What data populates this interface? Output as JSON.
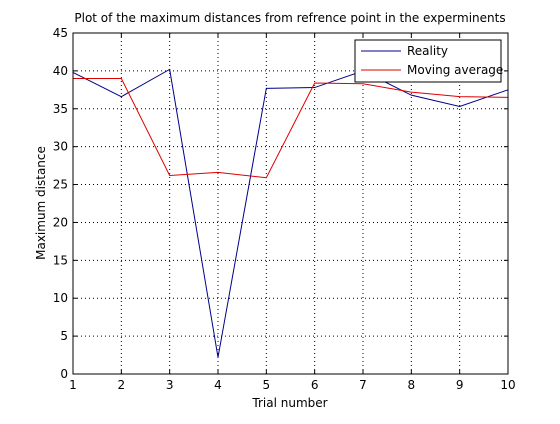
{
  "chart_data": {
    "type": "line",
    "title": "Plot of the maximum distances from refrence point in the experminents",
    "xlabel": "Trial number",
    "ylabel": "Maximum distance",
    "xlim": [
      1,
      10
    ],
    "ylim": [
      0,
      45
    ],
    "xticks": [
      1,
      2,
      3,
      4,
      5,
      6,
      7,
      8,
      9,
      10
    ],
    "yticks": [
      0,
      5,
      10,
      15,
      20,
      25,
      30,
      35,
      40,
      45
    ],
    "grid": true,
    "grid_style": "dotted",
    "legend_position": "top-right",
    "series": [
      {
        "name": "Reality",
        "color": "#00008B",
        "x": [
          1,
          2,
          3,
          4,
          5,
          6,
          7,
          8,
          9,
          10
        ],
        "y": [
          39.8,
          36.6,
          40.2,
          2.2,
          37.7,
          37.8,
          40.0,
          36.8,
          35.3,
          37.5
        ]
      },
      {
        "name": "Moving average",
        "color": "#DD0000",
        "x": [
          1,
          2,
          3,
          4,
          5,
          6,
          7,
          8,
          9,
          10
        ],
        "y": [
          39.0,
          39.0,
          26.2,
          26.6,
          25.9,
          38.4,
          38.3,
          37.2,
          36.6,
          36.5
        ]
      }
    ]
  }
}
